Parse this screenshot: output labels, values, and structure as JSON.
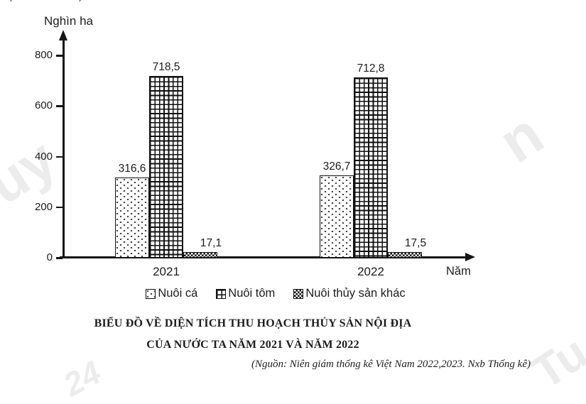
{
  "chart_data": {
    "type": "bar",
    "categories": [
      "2021",
      "2022"
    ],
    "series": [
      {
        "name": "Nuôi cá",
        "slug": "nuoi-ca",
        "pattern": "dots",
        "values": [
          316.6,
          326.7
        ],
        "value_labels": [
          "316,6",
          "326,7"
        ]
      },
      {
        "name": "Nuôi tôm",
        "slug": "nuoi-tom",
        "pattern": "grid",
        "values": [
          718.5,
          712.8
        ],
        "value_labels": [
          "718,5",
          "712,8"
        ]
      },
      {
        "name": "Nuôi thủy sản khác",
        "slug": "nuoi-thuy-san-khac",
        "pattern": "checker",
        "values": [
          17.1,
          17.5
        ],
        "value_labels": [
          "17,1",
          "17,5"
        ]
      }
    ],
    "title": "BIỂU ĐỒ VỀ DIỆN TÍCH THU HOẠCH THỦY SẢN NỘI ĐỊA CỦA NƯỚC TA NĂM 2021 VÀ NĂM 2022",
    "xlabel": "Năm",
    "ylabel": "Nghìn ha",
    "y_ticks": [
      0,
      200,
      400,
      600,
      800
    ],
    "ylim": [
      0,
      860
    ],
    "grid": false,
    "legend_position": "bottom"
  },
  "caption": {
    "line1": "BIỂU ĐỒ VỀ DIỆN TÍCH THU HOẠCH THỦY SẢN NỘI ĐỊA",
    "line2": "CỦA NƯỚC TA NĂM 2021 VÀ NĂM 2022",
    "source": "(Nguồn: Niên giám thống kê Việt Nam 2022,2023. Nxb Thống kê)"
  },
  "header": {
    "top_fragment_open": "(",
    "top_fragment_close": ")"
  },
  "watermarks": [
    "uy",
    "n",
    "Tu",
    "24"
  ],
  "colors": {
    "axis": "#151515",
    "text": "#1c1c1c",
    "pattern_ink": "#101010",
    "watermark": "#ececec",
    "background": "#ffffff"
  }
}
